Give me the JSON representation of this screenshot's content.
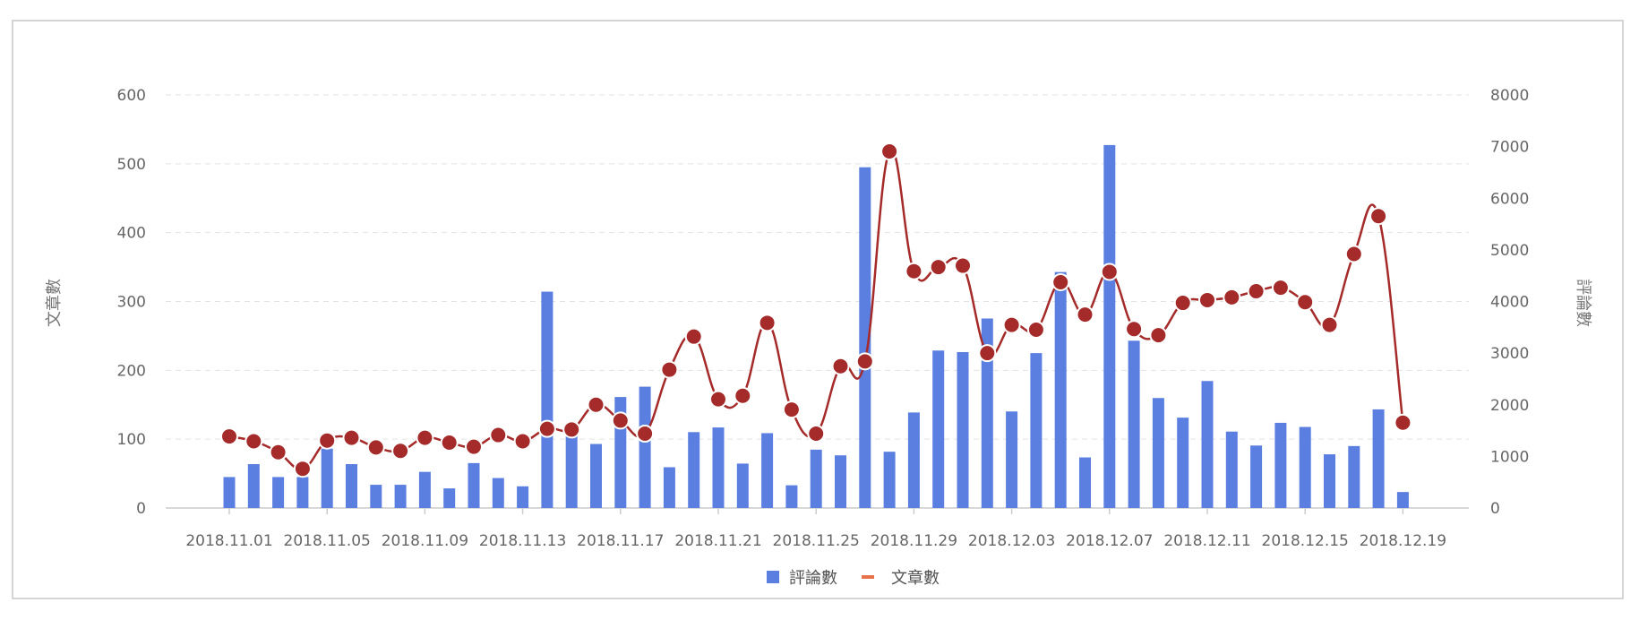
{
  "chart_data": {
    "type": "bar+line",
    "title": "",
    "y_left_label": "文章數",
    "y_right_label": "評論數",
    "y_left_ticks": [
      "0",
      "100",
      "200",
      "300",
      "400",
      "500",
      "600"
    ],
    "y_right_ticks": [
      "0",
      "1000",
      "2000",
      "3000",
      "4000",
      "5000",
      "6000",
      "7000",
      "8000"
    ],
    "ylim_left": [
      0,
      600
    ],
    "ylim_right": [
      0,
      8000
    ],
    "grid": true,
    "legend_position": "bottom",
    "legend": [
      {
        "name": "評論數",
        "color": "#5b7fe0",
        "shape": "square"
      },
      {
        "name": "文章數",
        "color": "#e8734a",
        "shape": "line"
      }
    ],
    "x_tick_labels": [
      "2018.11.01",
      "2018.11.05",
      "2018.11.09",
      "2018.11.13",
      "2018.11.17",
      "2018.11.21",
      "2018.11.25",
      "2018.11.29",
      "2018.12.03",
      "2018.12.07",
      "2018.12.11",
      "2018.12.15",
      "2018.12.19"
    ],
    "categories": [
      "2018.11.01",
      "2018.11.02",
      "2018.11.03",
      "2018.11.04",
      "2018.11.05",
      "2018.11.06",
      "2018.11.07",
      "2018.11.08",
      "2018.11.09",
      "2018.11.10",
      "2018.11.11",
      "2018.11.12",
      "2018.11.13",
      "2018.11.14",
      "2018.11.15",
      "2018.11.16",
      "2018.11.17",
      "2018.11.18",
      "2018.11.19",
      "2018.11.20",
      "2018.11.21",
      "2018.11.22",
      "2018.11.23",
      "2018.11.24",
      "2018.11.25",
      "2018.11.26",
      "2018.11.27",
      "2018.11.28",
      "2018.11.29",
      "2018.11.30",
      "2018.12.01",
      "2018.12.02",
      "2018.12.03",
      "2018.12.04",
      "2018.12.05",
      "2018.12.06",
      "2018.12.07",
      "2018.12.08",
      "2018.12.09",
      "2018.12.10",
      "2018.12.11",
      "2018.12.12",
      "2018.12.13",
      "2018.12.14",
      "2018.12.15",
      "2018.12.16",
      "2018.12.17",
      "2018.12.18",
      "2018.12.19"
    ],
    "series": [
      {
        "name": "評論數",
        "type": "bar",
        "axis": "right",
        "color": "#5b7fe0",
        "values": [
          600,
          850,
          600,
          600,
          1150,
          850,
          450,
          450,
          700,
          380,
          870,
          580,
          420,
          4190,
          1530,
          1240,
          2150,
          2350,
          790,
          1470,
          1560,
          860,
          1450,
          440,
          1130,
          1020,
          6600,
          1090,
          1850,
          3050,
          3020,
          3670,
          1870,
          3000,
          4570,
          980,
          7030,
          3240,
          2130,
          1750,
          2460,
          1480,
          1210,
          1650,
          1570,
          1040,
          1200,
          1910,
          310
        ]
      },
      {
        "name": "文章數",
        "type": "line",
        "axis": "left",
        "color": "#a52a2a",
        "values": [
          104,
          97,
          81,
          57,
          98,
          102,
          88,
          83,
          102,
          95,
          89,
          106,
          97,
          115,
          114,
          150,
          127,
          108,
          201,
          249,
          158,
          163,
          269,
          143,
          108,
          206,
          213,
          518,
          344,
          350,
          352,
          225,
          266,
          259,
          328,
          281,
          343,
          260,
          251,
          298,
          302,
          306,
          315,
          320,
          299,
          266,
          369,
          424,
          124
        ]
      }
    ]
  }
}
